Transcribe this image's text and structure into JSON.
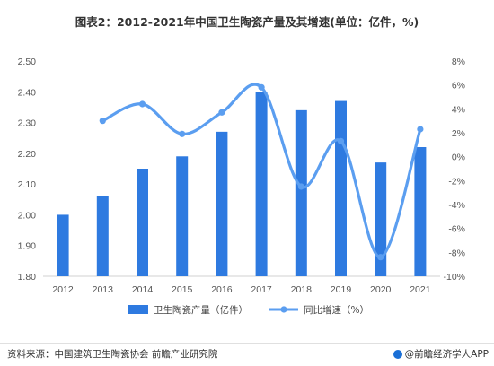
{
  "title": "图表2：2012-2021年中国卫生陶瓷产量及其增速(单位：亿件，%)",
  "chart_data": {
    "type": "bar",
    "categories": [
      "2012",
      "2013",
      "2014",
      "2015",
      "2016",
      "2017",
      "2018",
      "2019",
      "2020",
      "2021"
    ],
    "series": [
      {
        "name": "卫生陶瓷产量（亿件）",
        "type": "bar",
        "axis": "left",
        "values": [
          2.0,
          2.06,
          2.15,
          2.19,
          2.27,
          2.4,
          2.34,
          2.37,
          2.17,
          2.22
        ]
      },
      {
        "name": "同比增速（%）",
        "type": "line",
        "axis": "right",
        "values": [
          null,
          3.0,
          4.4,
          1.9,
          3.7,
          5.8,
          -2.5,
          1.3,
          -8.4,
          2.3
        ]
      }
    ],
    "ylim_left": [
      1.8,
      2.5
    ],
    "yticks_left": [
      "1.80",
      "1.90",
      "2.00",
      "2.10",
      "2.20",
      "2.30",
      "2.40",
      "2.50"
    ],
    "ylim_right": [
      -10,
      8
    ],
    "yticks_right": [
      "-10%",
      "-8%",
      "-6%",
      "-4%",
      "-2%",
      "0%",
      "2%",
      "4%",
      "6%",
      "8%"
    ],
    "legend_position": "bottom",
    "colors": {
      "bar": "#2e7ae0",
      "line": "#5b9ef0"
    }
  },
  "footer": {
    "source": "资料来源：中国建筑卫生陶瓷协会 前瞻产业研究院",
    "brand": "@前瞻经济学人APP"
  }
}
